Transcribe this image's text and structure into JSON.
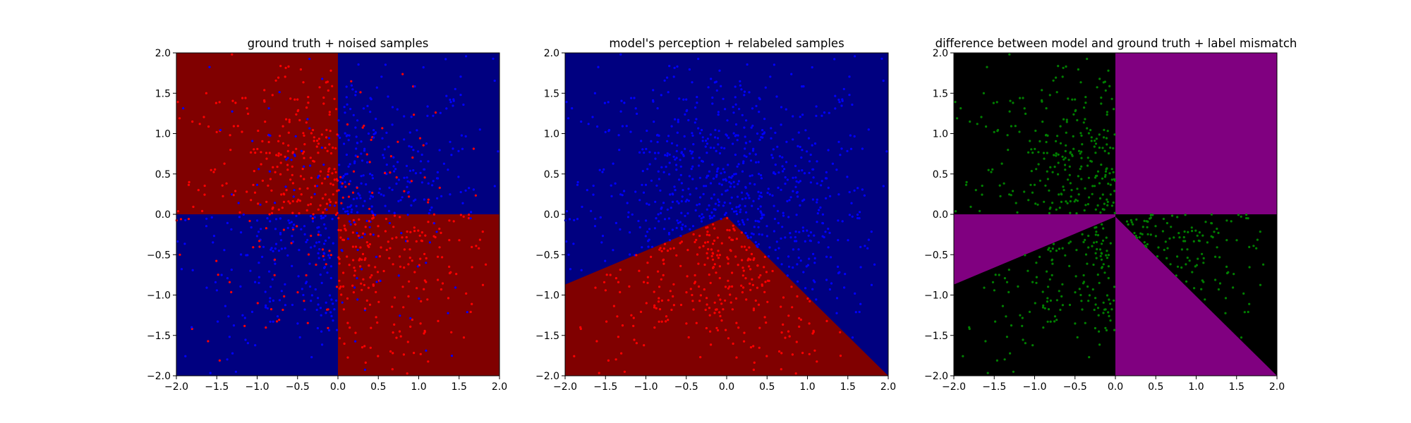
{
  "chart_data": [
    {
      "type": "scatter",
      "title": "ground truth + noised samples",
      "xlim": [
        -2.0,
        2.0
      ],
      "ylim": [
        -2.0,
        2.0
      ],
      "xticks": [
        "−2.0",
        "−1.5",
        "−1.0",
        "−0.5",
        "0.0",
        "0.5",
        "1.0",
        "1.5",
        "2.0"
      ],
      "yticks": [
        "−2.0",
        "−1.5",
        "−1.0",
        "−0.5",
        "0.0",
        "0.5",
        "1.0",
        "1.5",
        "2.0"
      ],
      "xlabel": "",
      "ylabel": "",
      "grid": false,
      "background": "quadrant regions (dark red: x<0,y>0 and x>0,y<0; dark blue: x>0,y>0 and x<0,y<0)",
      "region_colors": {
        "red": "#800000",
        "blue": "#000080"
      },
      "point_colors": {
        "red": "#ff0000",
        "blue": "#0000ff"
      },
      "point_count_approx": 1000,
      "point_distribution": "uniform in [-2,2]x[-2,2], denser near origin; label noise near boundaries"
    },
    {
      "type": "scatter",
      "title": "model's perception + relabeled samples",
      "xlim": [
        -2.0,
        2.0
      ],
      "ylim": [
        -2.0,
        2.0
      ],
      "xticks": [
        "−2.0",
        "−1.5",
        "−1.0",
        "−0.5",
        "0.0",
        "0.5",
        "1.0",
        "1.5",
        "2.0"
      ],
      "yticks": [
        "−2.0",
        "−1.5",
        "−1.0",
        "−0.5",
        "0.0",
        "0.5",
        "1.0",
        "1.5",
        "2.0"
      ],
      "xlabel": "",
      "ylabel": "",
      "grid": false,
      "background": "dark blue everywhere except a dark red wedge below the origin bounded by rays to (-2,-0.87) and (2,-2)",
      "decision_wedge": {
        "vertex": [
          0.0,
          -0.03
        ],
        "left_ray_end": [
          -2.0,
          -0.87
        ],
        "right_ray_end": [
          2.0,
          -2.0
        ]
      },
      "region_colors": {
        "red": "#800000",
        "blue": "#000080"
      },
      "point_colors": {
        "red": "#ff0000",
        "blue": "#0000ff"
      },
      "point_count_approx": 1000
    },
    {
      "type": "scatter",
      "title": "difference between model and ground truth + label mismatch",
      "xlim": [
        -2.0,
        2.0
      ],
      "ylim": [
        -2.0,
        2.0
      ],
      "xticks": [
        "−2.0",
        "−1.5",
        "−1.0",
        "−0.5",
        "0.0",
        "0.5",
        "1.0",
        "1.5",
        "2.0"
      ],
      "yticks": [
        "−2.0",
        "−1.5",
        "−1.0",
        "−0.5",
        "0.0",
        "0.5",
        "1.0",
        "1.5",
        "2.0"
      ],
      "xlabel": "",
      "ylabel": "",
      "grid": false,
      "background": "black where model agrees; purple where model differs (upper-right quadrant and two wedges)",
      "region_colors": {
        "agree": "#000000",
        "differ": "#800080"
      },
      "point_colors": {
        "mismatch": "#008000"
      },
      "point_count_approx": 420
    }
  ]
}
